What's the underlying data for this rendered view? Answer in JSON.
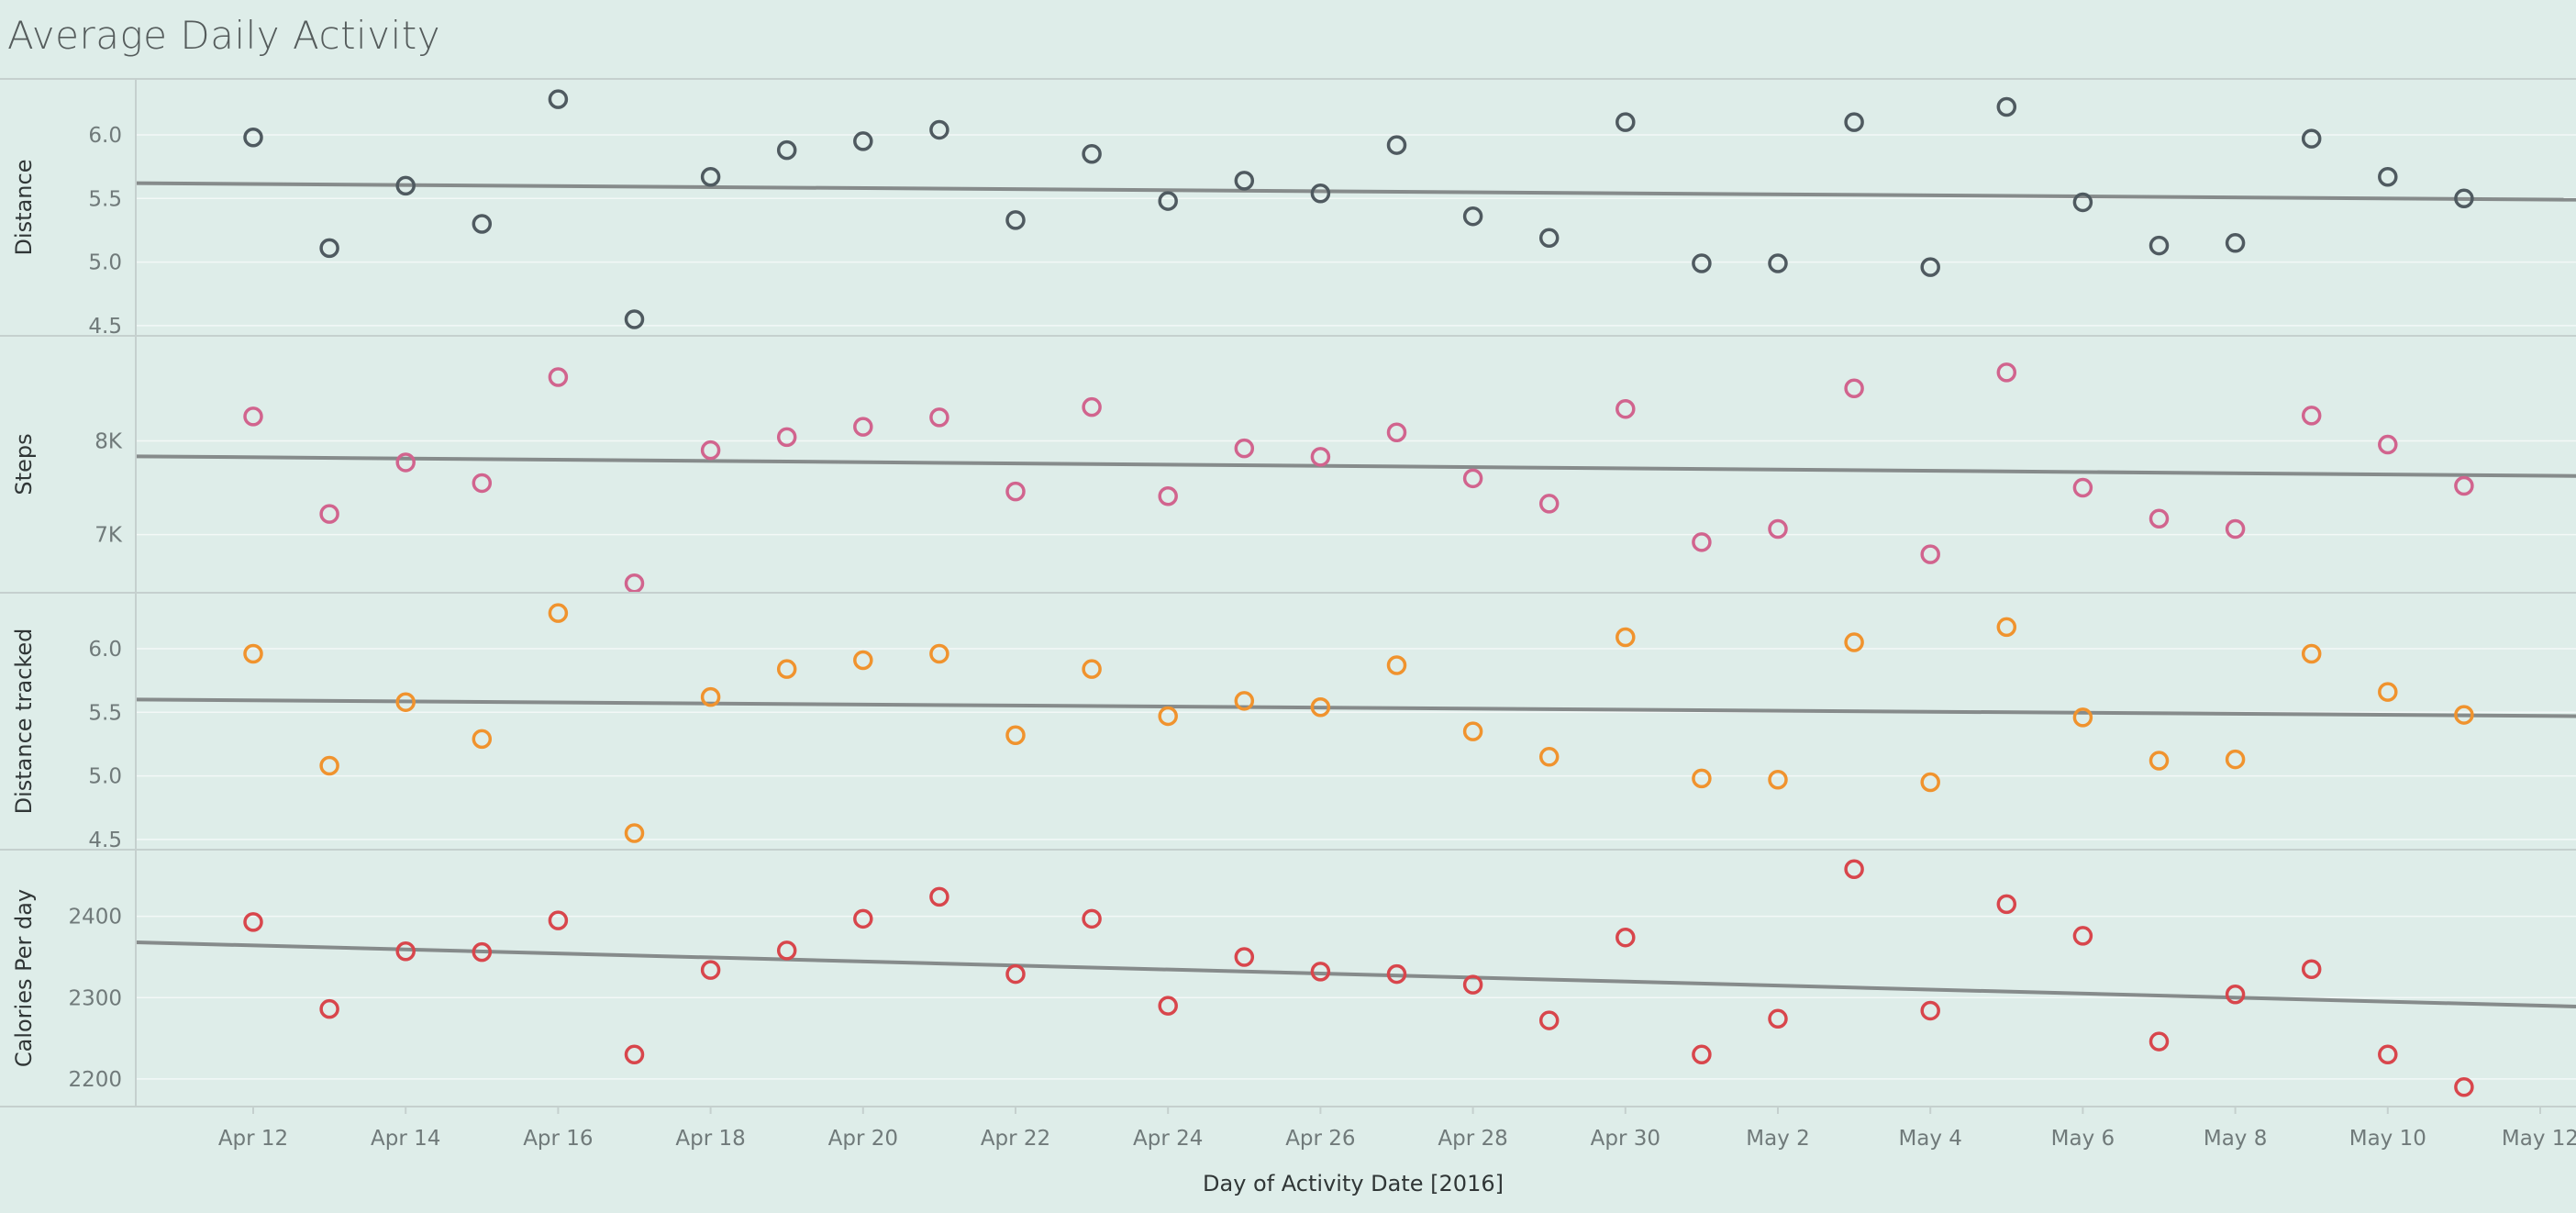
{
  "title": "Average Daily Activity",
  "chart_data": {
    "type": "scatter",
    "title": "Average Daily Activity",
    "xlabel": "Day of Activity Date [2016]",
    "x_ticks": [
      "Apr 12",
      "Apr 14",
      "Apr 16",
      "Apr 18",
      "Apr 20",
      "Apr 22",
      "Apr 24",
      "Apr 26",
      "Apr 28",
      "Apr 30",
      "May 2",
      "May 4",
      "May 6",
      "May 8",
      "May 10",
      "May 12"
    ],
    "x": [
      "Apr 12",
      "Apr 13",
      "Apr 14",
      "Apr 15",
      "Apr 16",
      "Apr 17",
      "Apr 18",
      "Apr 19",
      "Apr 20",
      "Apr 21",
      "Apr 22",
      "Apr 23",
      "Apr 24",
      "Apr 25",
      "Apr 26",
      "Apr 27",
      "Apr 28",
      "Apr 29",
      "Apr 30",
      "May 1",
      "May 2",
      "May 3",
      "May 4",
      "May 5",
      "May 6",
      "May 7",
      "May 8",
      "May 9",
      "May 10",
      "May 11"
    ],
    "grid": true,
    "trend_lines": true,
    "panels": [
      {
        "ylabel": "Distance",
        "color": "#4f5a60",
        "ylim": [
          4.42,
          6.44
        ],
        "y_ticks": [
          "6.0",
          "5.5",
          "5.0",
          "4.5"
        ],
        "y_tick_values": [
          6.0,
          5.5,
          5.0,
          4.5
        ],
        "trend": [
          5.62,
          5.49
        ],
        "values": [
          5.98,
          5.11,
          5.6,
          5.3,
          6.28,
          4.55,
          5.67,
          5.88,
          5.95,
          6.04,
          5.33,
          5.85,
          5.48,
          5.64,
          5.54,
          5.92,
          5.36,
          5.19,
          6.1,
          4.99,
          4.99,
          6.1,
          4.96,
          6.22,
          5.47,
          5.13,
          5.15,
          5.97,
          5.67,
          5.5
        ]
      },
      {
        "ylabel": "Steps",
        "color": "#d1648e",
        "ylim": [
          6380,
          9120
        ],
        "y_ticks": [
          "8K",
          "7K"
        ],
        "y_tick_values": [
          8000,
          7000
        ],
        "trend": [
          7835,
          7625
        ],
        "values": [
          8260,
          7220,
          7770,
          7550,
          8680,
          6480,
          7900,
          8040,
          8150,
          8250,
          7460,
          8360,
          7410,
          7920,
          7830,
          8090,
          7600,
          7330,
          8340,
          6920,
          7060,
          8560,
          6790,
          8730,
          7500,
          7170,
          7060,
          8270,
          7960,
          7520
        ]
      },
      {
        "ylabel": "Distance tracked",
        "color": "#f0932e",
        "ylim": [
          4.42,
          6.44
        ],
        "y_ticks": [
          "6.0",
          "5.5",
          "5.0",
          "4.5"
        ],
        "y_tick_values": [
          6.0,
          5.5,
          5.0,
          4.5
        ],
        "trend": [
          5.6,
          5.47
        ],
        "values": [
          5.96,
          5.08,
          5.58,
          5.29,
          6.28,
          4.55,
          5.62,
          5.84,
          5.91,
          5.96,
          5.32,
          5.84,
          5.47,
          5.59,
          5.54,
          5.87,
          5.35,
          5.15,
          6.09,
          4.98,
          4.97,
          6.05,
          4.95,
          6.17,
          5.46,
          5.12,
          5.13,
          5.96,
          5.66,
          5.48
        ]
      },
      {
        "ylabel": "Calories Per day",
        "color": "#d8464c",
        "ylim": [
          2166,
          2482
        ],
        "y_ticks": [
          "2400",
          "2300",
          "2200"
        ],
        "y_tick_values": [
          2400,
          2300,
          2200
        ],
        "trend": [
          2368,
          2289
        ],
        "values": [
          2393,
          2286,
          2357,
          2356,
          2395,
          2230,
          2334,
          2358,
          2397,
          2424,
          2329,
          2397,
          2290,
          2350,
          2332,
          2329,
          2316,
          2272,
          2374,
          2230,
          2274,
          2458,
          2284,
          2415,
          2376,
          2246,
          2304,
          2335,
          2230,
          2190
        ]
      }
    ]
  }
}
